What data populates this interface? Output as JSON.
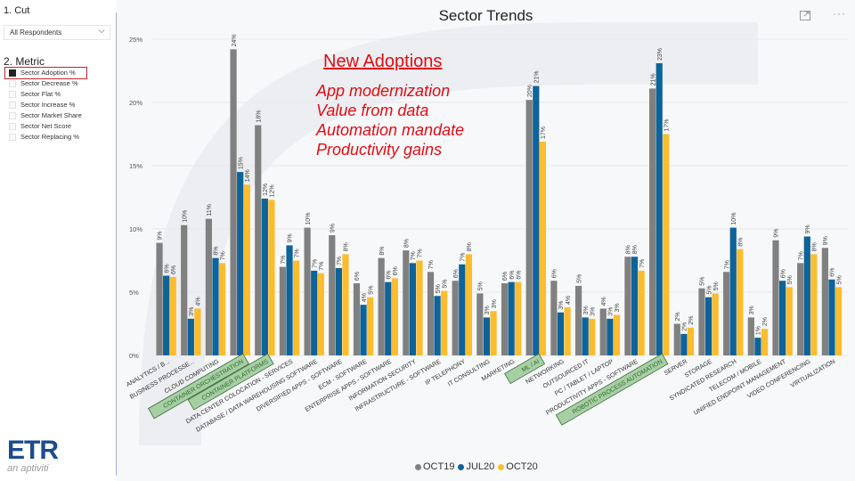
{
  "left_panel": {
    "cut_title": "1. Cut",
    "cut_selected": "All Respondents",
    "metric_title": "2. Metric",
    "metrics": [
      {
        "label": "Sector Adoption %",
        "checked": true
      },
      {
        "label": "Sector Decrease %",
        "checked": false
      },
      {
        "label": "Sector Flat %",
        "checked": false
      },
      {
        "label": "Sector Increase %",
        "checked": false
      },
      {
        "label": "Sector Market Share",
        "checked": false
      },
      {
        "label": "Sector Net Score",
        "checked": false
      },
      {
        "label": "Sector Replacing %",
        "checked": false
      }
    ],
    "logo_text": "ETR",
    "logo_sub": "an aptiviti"
  },
  "header": {
    "focus_icon": "focus-mode-icon",
    "more_icon": "more-options-icon",
    "more_label": "···"
  },
  "annotation": {
    "heading": "New Adoptions",
    "lines": [
      "App modernization",
      "Value from data",
      "Automation mandate",
      "Productivity gains"
    ]
  },
  "colors": {
    "OCT19": "#808080",
    "JUL20": "#0e6399",
    "OCT20": "#fbbd2e",
    "highlight_fill": "#a6cfa4",
    "annotation": "#e00d14"
  },
  "chart_data": {
    "type": "bar",
    "title": "Sector Trends",
    "xlabel": "",
    "ylabel": "",
    "ylim": [
      0,
      25
    ],
    "yticks": [
      "0%",
      "5%",
      "10%",
      "15%",
      "20%",
      "25%"
    ],
    "ytick_values": [
      0,
      5,
      10,
      15,
      20,
      25
    ],
    "grid": true,
    "legend_position": "bottom-center",
    "categories": [
      "ANALYTICS / B...",
      "BUSINESS PROCESSE...",
      "CLOUD COMPUTING",
      "CONTAINER ORCHESTRATION",
      "CONTAINER PLATFORMS",
      "DATA CENTER COLOCATION - SERVICES",
      "DATABASE / DATA WAREHOUSING SOFTWARE",
      "DIVERSIFIED APPS - SOFTWARE",
      "ECM - SOFTWARE",
      "ENTERPRISE APPS - SOFTWARE",
      "INFORMATION SECURITY",
      "INFRASTRUCTURE - SOFTWARE",
      "IP TELEPHONY",
      "IT CONSULTING",
      "MARKETING",
      "ML / AI",
      "NETWORKING",
      "OUTSOURCED IT",
      "PC / TABLET / LAPTOP",
      "PRODUCTIVITY APPS - SOFTWARE",
      "ROBOTIC PROCESS AUTOMATION",
      "SERVER",
      "STORAGE",
      "SYNDICATED RESEARCH",
      "TELECOM / MOBILE",
      "UNIFIED ENDPOINT MANAGEMENT",
      "VIDEO CONFERENCING",
      "VIRTUALIZATION"
    ],
    "highlighted_categories": [
      "CONTAINER ORCHESTRATION",
      "CONTAINER PLATFORMS",
      "ML / AI",
      "ROBOTIC PROCESS AUTOMATION"
    ],
    "series": [
      {
        "name": "OCT19",
        "values": [
          8.9,
          10.3,
          10.8,
          24.2,
          18.2,
          7.0,
          10.1,
          9.5,
          5.7,
          7.7,
          8.3,
          6.6,
          5.9,
          4.9,
          5.7,
          20.2,
          5.9,
          5.5,
          3.7,
          7.8,
          21.1,
          2.5,
          5.3,
          6.6,
          3.0,
          9.1,
          7.3,
          8.5
        ],
        "labels": [
          "9%",
          "10%",
          "11%",
          "24%",
          "18%",
          "7%",
          "10%",
          "9%",
          "6%",
          "8%",
          "8%",
          "7%",
          "6%",
          "5%",
          "6%",
          "20%",
          "6%",
          "5%",
          "4%",
          "8%",
          "21%",
          "2%",
          "5%",
          "7%",
          "3%",
          "9%",
          "7%",
          "9%"
        ]
      },
      {
        "name": "JUL20",
        "values": [
          6.3,
          2.9,
          7.7,
          14.5,
          12.4,
          8.7,
          6.7,
          6.9,
          4.0,
          5.8,
          7.3,
          4.7,
          7.2,
          3.0,
          5.8,
          21.3,
          3.4,
          3.0,
          2.9,
          7.8,
          23.1,
          1.7,
          4.6,
          10.1,
          1.4,
          5.9,
          9.4,
          6.0
        ],
        "labels": [
          "6%",
          "3%",
          "8%",
          "15%",
          "12%",
          "9%",
          "7%",
          "7%",
          "4%",
          "6%",
          "7%",
          "5%",
          "7%",
          "3%",
          "6%",
          "21%",
          "3%",
          "3%",
          "3%",
          "8%",
          "23%",
          "2%",
          "5%",
          "10%",
          "1%",
          "6%",
          "9%",
          "6%"
        ]
      },
      {
        "name": "OCT20",
        "values": [
          6.2,
          3.7,
          7.3,
          13.5,
          12.3,
          7.5,
          6.5,
          8.0,
          4.6,
          6.1,
          7.5,
          5.1,
          8.0,
          3.5,
          5.8,
          16.9,
          3.8,
          2.9,
          3.2,
          6.7,
          17.5,
          2.2,
          4.9,
          8.4,
          2.1,
          5.4,
          8.0,
          5.4
        ],
        "labels": [
          "6%",
          "4%",
          "7%",
          "14%",
          "12%",
          "7%",
          "7%",
          "8%",
          "5%",
          "6%",
          "7%",
          "5%",
          "8%",
          "3%",
          "6%",
          "17%",
          "4%",
          "3%",
          "3%",
          "7%",
          "17%",
          "2%",
          "5%",
          "8%",
          "2%",
          "5%",
          "8%",
          "5%"
        ]
      }
    ]
  }
}
